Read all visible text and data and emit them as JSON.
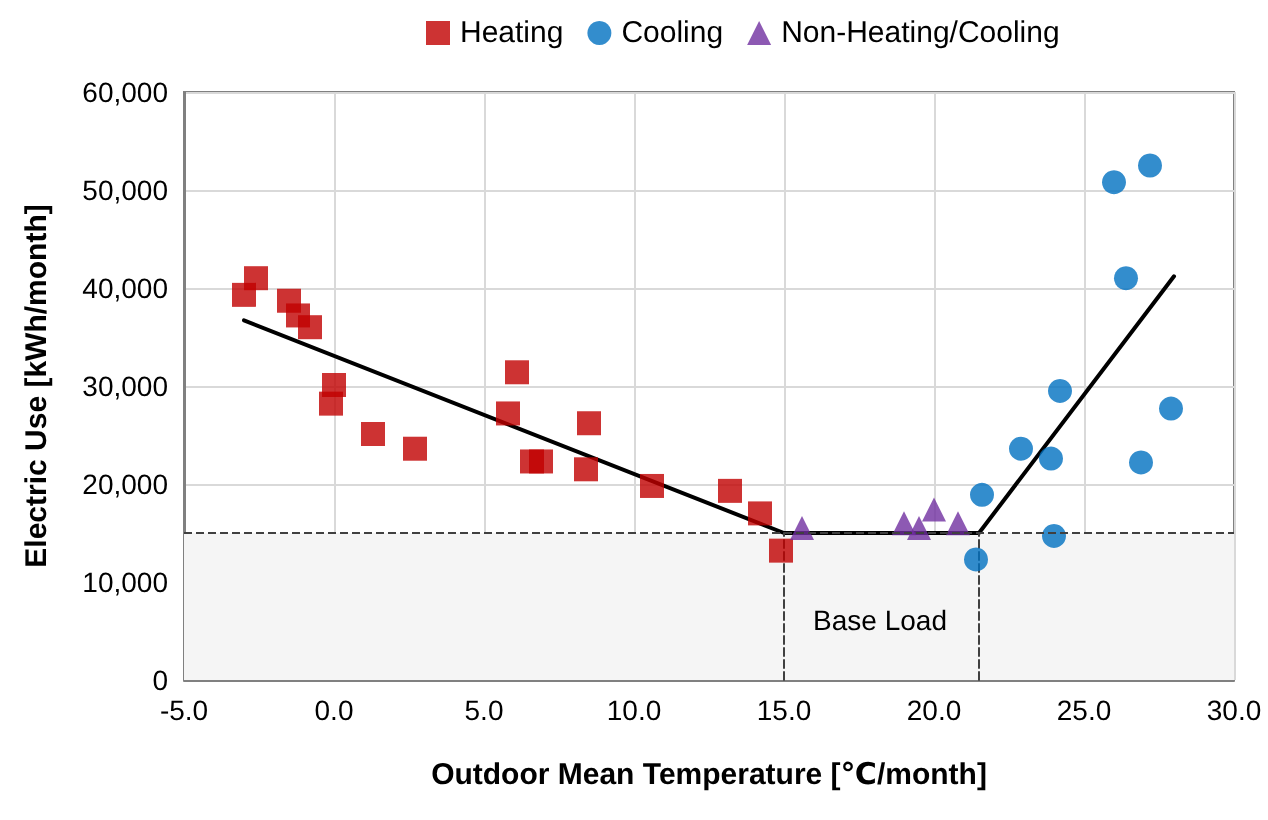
{
  "chart_data": {
    "type": "scatter",
    "xlabel": "Outdoor Mean Temperature [℃/month]",
    "ylabel": "Electric Use [kWh/month]",
    "xlim": [
      -5,
      30
    ],
    "xticks": [
      {
        "value": -5,
        "label": "-5.0"
      },
      {
        "value": 0,
        "label": "0.0"
      },
      {
        "value": 5,
        "label": "5.0"
      },
      {
        "value": 10,
        "label": "10.0"
      },
      {
        "value": 15,
        "label": "15.0"
      },
      {
        "value": 20,
        "label": "20.0"
      },
      {
        "value": 25,
        "label": "25.0"
      },
      {
        "value": 30,
        "label": "30.0"
      }
    ],
    "ylim": [
      0,
      60000
    ],
    "yticks": [
      {
        "value": 0,
        "label": "0"
      },
      {
        "value": 10000,
        "label": "10,000"
      },
      {
        "value": 20000,
        "label": "20,000"
      },
      {
        "value": 30000,
        "label": "30,000"
      },
      {
        "value": 40000,
        "label": "40,000"
      },
      {
        "value": 50000,
        "label": "50,000"
      },
      {
        "value": 60000,
        "label": "60,000"
      }
    ],
    "grid": true,
    "legend": "top",
    "series": [
      {
        "name": "Heating",
        "color": "#c00000",
        "marker": "square",
        "x": [
          -3.0,
          -2.6,
          -1.5,
          -1.2,
          -0.8,
          -0.1,
          0.0,
          1.3,
          2.7,
          5.8,
          6.1,
          6.6,
          6.9,
          8.4,
          8.5,
          10.6,
          13.2,
          14.2,
          14.9
        ],
        "values": [
          39300,
          41000,
          38700,
          37200,
          36000,
          28200,
          30100,
          25100,
          23600,
          27200,
          31400,
          22300,
          22300,
          21500,
          26200,
          19800,
          19300,
          17000,
          13200
        ]
      },
      {
        "name": "Cooling",
        "color": "#0070c0",
        "marker": "circle",
        "x": [
          21.4,
          21.6,
          22.9,
          23.9,
          24.0,
          24.2,
          26.0,
          26.4,
          26.9,
          27.2,
          27.9
        ],
        "values": [
          12300,
          18900,
          23600,
          22600,
          14700,
          29500,
          50800,
          41000,
          22200,
          52500,
          27700
        ]
      },
      {
        "name": "Non-Heating/Cooling",
        "color": "#7030a0",
        "marker": "triangle",
        "x": [
          15.6,
          19.0,
          19.5,
          20.0,
          20.8
        ],
        "values": [
          15500,
          16000,
          15500,
          17400,
          16000
        ]
      },
      {
        "type": "line",
        "color": "#000000",
        "marker": "none",
        "line_style": "solid",
        "x": [
          -3.0,
          15.0,
          21.5,
          28.0
        ],
        "values": [
          36700,
          15000,
          15000,
          41200
        ]
      },
      {
        "type": "line",
        "color": "#404040",
        "marker": "none",
        "line_style": "dashed",
        "x": [
          15.0,
          15.0
        ],
        "values": [
          0,
          15000
        ]
      },
      {
        "type": "line",
        "color": "#404040",
        "marker": "none",
        "line_style": "dashed",
        "x": [
          21.5,
          21.5
        ],
        "values": [
          0,
          15000
        ]
      }
    ],
    "ref_lines": [
      {
        "axis": "y",
        "value": 15000,
        "color": "#404040",
        "line_style": "dashed"
      }
    ],
    "bands": [
      {
        "axis": "y",
        "from": 0,
        "to": 15000,
        "color": "#f5f5f5"
      }
    ],
    "annotations": [
      "Base Load"
    ]
  }
}
